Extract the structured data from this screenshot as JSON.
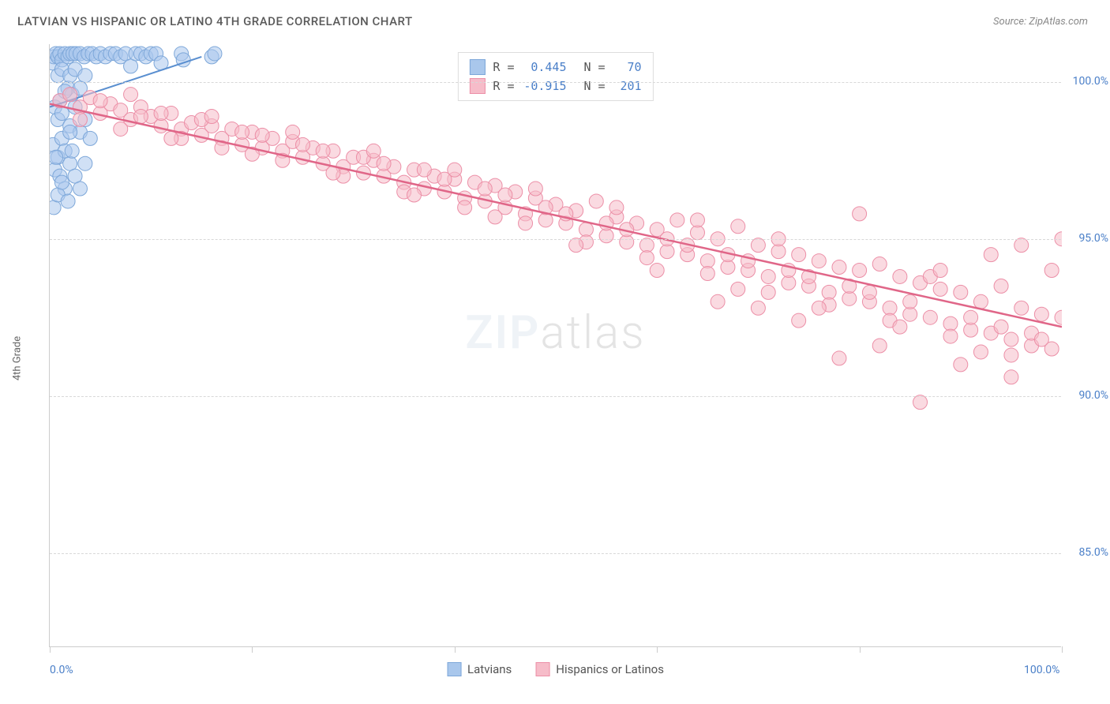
{
  "title": "LATVIAN VS HISPANIC OR LATINO 4TH GRADE CORRELATION CHART",
  "source": "Source: ZipAtlas.com",
  "y_axis_label": "4th Grade",
  "watermark_a": "ZIP",
  "watermark_b": "atlas",
  "chart": {
    "type": "scatter",
    "background_color": "#ffffff",
    "grid_color": "#d8d8d8",
    "axis_color": "#cccccc",
    "tick_label_color": "#4a7fc8",
    "xlim": [
      0,
      100
    ],
    "ylim": [
      82,
      101.2
    ],
    "y_ticks": [
      85,
      90,
      95,
      100
    ],
    "y_tick_labels": [
      "85.0%",
      "90.0%",
      "95.0%",
      "100.0%"
    ],
    "x_ticks": [
      0,
      20,
      40,
      60,
      80,
      100
    ],
    "x_tick_labels_shown": {
      "0": "0.0%",
      "100": "100.0%"
    },
    "series": [
      {
        "name": "Latvians",
        "color_fill": "#a9c7ec",
        "color_stroke": "#7da7d9",
        "fill_opacity": 0.55,
        "marker_radius": 9,
        "trend": {
          "x1": 0,
          "y1": 99.2,
          "x2": 15,
          "y2": 100.8,
          "color": "#5a8fd0",
          "width": 2
        },
        "R": "0.445",
        "N": "70",
        "points": [
          [
            0.3,
            100.6
          ],
          [
            0.4,
            100.8
          ],
          [
            0.6,
            100.9
          ],
          [
            0.8,
            100.8
          ],
          [
            1.0,
            100.9
          ],
          [
            1.2,
            100.7
          ],
          [
            1.5,
            100.9
          ],
          [
            1.8,
            100.8
          ],
          [
            2.0,
            100.9
          ],
          [
            2.3,
            100.9
          ],
          [
            2.6,
            100.9
          ],
          [
            3.0,
            100.9
          ],
          [
            3.4,
            100.8
          ],
          [
            3.8,
            100.9
          ],
          [
            4.2,
            100.9
          ],
          [
            4.6,
            100.8
          ],
          [
            5.0,
            100.9
          ],
          [
            5.5,
            100.8
          ],
          [
            6.0,
            100.9
          ],
          [
            6.5,
            100.9
          ],
          [
            7.0,
            100.8
          ],
          [
            7.5,
            100.9
          ],
          [
            8.0,
            100.5
          ],
          [
            8.5,
            100.9
          ],
          [
            9.0,
            100.9
          ],
          [
            9.5,
            100.8
          ],
          [
            10.0,
            100.9
          ],
          [
            10.5,
            100.9
          ],
          [
            11.0,
            100.6
          ],
          [
            13.0,
            100.9
          ],
          [
            13.2,
            100.7
          ],
          [
            16.0,
            100.8
          ],
          [
            16.3,
            100.9
          ],
          [
            0.8,
            100.2
          ],
          [
            1.2,
            100.4
          ],
          [
            1.8,
            99.8
          ],
          [
            2.0,
            100.2
          ],
          [
            2.2,
            99.6
          ],
          [
            2.5,
            100.4
          ],
          [
            3.0,
            99.8
          ],
          [
            3.5,
            100.2
          ],
          [
            0.5,
            99.2
          ],
          [
            1.0,
            99.4
          ],
          [
            1.5,
            99.7
          ],
          [
            0.8,
            98.8
          ],
          [
            1.2,
            99.0
          ],
          [
            2.0,
            98.6
          ],
          [
            2.5,
            99.2
          ],
          [
            3.0,
            98.4
          ],
          [
            3.5,
            98.8
          ],
          [
            4.0,
            98.2
          ],
          [
            0.3,
            98.0
          ],
          [
            0.8,
            97.6
          ],
          [
            1.2,
            98.2
          ],
          [
            1.5,
            97.8
          ],
          [
            2.0,
            98.4
          ],
          [
            0.5,
            97.2
          ],
          [
            1.0,
            97.0
          ],
          [
            1.5,
            96.6
          ],
          [
            2.0,
            97.4
          ],
          [
            0.4,
            96.0
          ],
          [
            0.8,
            96.4
          ],
          [
            1.2,
            96.8
          ],
          [
            0.6,
            97.6
          ],
          [
            2.5,
            97.0
          ],
          [
            3.0,
            96.6
          ],
          [
            1.8,
            96.2
          ],
          [
            2.2,
            97.8
          ],
          [
            3.5,
            97.4
          ]
        ]
      },
      {
        "name": "Hispanics or Latinos",
        "color_fill": "#f6bcc9",
        "color_stroke": "#ec8fa7",
        "fill_opacity": 0.55,
        "marker_radius": 9,
        "trend": {
          "x1": 0,
          "y1": 99.3,
          "x2": 100,
          "y2": 92.2,
          "color": "#e06688",
          "width": 2.5
        },
        "R": "-0.915",
        "N": "201",
        "points": [
          [
            1,
            99.4
          ],
          [
            2,
            99.6
          ],
          [
            3,
            99.2
          ],
          [
            4,
            99.5
          ],
          [
            5,
            99.0
          ],
          [
            6,
            99.3
          ],
          [
            7,
            99.1
          ],
          [
            8,
            98.8
          ],
          [
            9,
            99.2
          ],
          [
            10,
            98.9
          ],
          [
            11,
            98.6
          ],
          [
            12,
            99.0
          ],
          [
            13,
            98.5
          ],
          [
            14,
            98.7
          ],
          [
            15,
            98.3
          ],
          [
            16,
            98.6
          ],
          [
            17,
            98.2
          ],
          [
            18,
            98.5
          ],
          [
            19,
            98.0
          ],
          [
            20,
            98.4
          ],
          [
            21,
            97.9
          ],
          [
            22,
            98.2
          ],
          [
            23,
            97.8
          ],
          [
            24,
            98.1
          ],
          [
            25,
            97.6
          ],
          [
            26,
            97.9
          ],
          [
            27,
            97.4
          ],
          [
            28,
            97.8
          ],
          [
            29,
            97.3
          ],
          [
            30,
            97.6
          ],
          [
            31,
            97.1
          ],
          [
            32,
            97.5
          ],
          [
            33,
            97.0
          ],
          [
            34,
            97.3
          ],
          [
            35,
            96.8
          ],
          [
            36,
            97.2
          ],
          [
            37,
            96.6
          ],
          [
            38,
            97.0
          ],
          [
            39,
            96.5
          ],
          [
            40,
            96.9
          ],
          [
            41,
            96.3
          ],
          [
            42,
            96.8
          ],
          [
            43,
            96.2
          ],
          [
            44,
            96.7
          ],
          [
            45,
            96.0
          ],
          [
            46,
            96.5
          ],
          [
            47,
            95.8
          ],
          [
            48,
            96.3
          ],
          [
            49,
            95.6
          ],
          [
            50,
            96.1
          ],
          [
            51,
            95.5
          ],
          [
            52,
            95.9
          ],
          [
            53,
            95.3
          ],
          [
            54,
            96.2
          ],
          [
            55,
            95.1
          ],
          [
            56,
            95.7
          ],
          [
            57,
            94.9
          ],
          [
            58,
            95.5
          ],
          [
            59,
            94.8
          ],
          [
            60,
            95.3
          ],
          [
            61,
            94.6
          ],
          [
            62,
            95.6
          ],
          [
            63,
            94.5
          ],
          [
            64,
            95.2
          ],
          [
            65,
            94.3
          ],
          [
            66,
            95.0
          ],
          [
            67,
            94.1
          ],
          [
            68,
            95.4
          ],
          [
            69,
            94.0
          ],
          [
            70,
            94.8
          ],
          [
            71,
            93.8
          ],
          [
            72,
            94.6
          ],
          [
            73,
            93.6
          ],
          [
            74,
            94.5
          ],
          [
            75,
            93.5
          ],
          [
            76,
            94.3
          ],
          [
            77,
            93.3
          ],
          [
            78,
            94.1
          ],
          [
            79,
            93.1
          ],
          [
            80,
            94.0
          ],
          [
            81,
            93.0
          ],
          [
            82,
            94.2
          ],
          [
            83,
            92.8
          ],
          [
            84,
            93.8
          ],
          [
            85,
            92.6
          ],
          [
            86,
            93.6
          ],
          [
            87,
            92.5
          ],
          [
            88,
            93.4
          ],
          [
            89,
            92.3
          ],
          [
            90,
            93.3
          ],
          [
            91,
            92.1
          ],
          [
            92,
            93.0
          ],
          [
            93,
            92.0
          ],
          [
            94,
            93.5
          ],
          [
            95,
            91.8
          ],
          [
            96,
            92.8
          ],
          [
            97,
            91.6
          ],
          [
            98,
            92.6
          ],
          [
            99,
            91.5
          ],
          [
            100,
            92.5
          ],
          [
            3,
            98.8
          ],
          [
            5,
            99.4
          ],
          [
            7,
            98.5
          ],
          [
            9,
            98.9
          ],
          [
            11,
            99.0
          ],
          [
            13,
            98.2
          ],
          [
            15,
            98.8
          ],
          [
            17,
            97.9
          ],
          [
            19,
            98.4
          ],
          [
            21,
            98.3
          ],
          [
            23,
            97.5
          ],
          [
            25,
            98.0
          ],
          [
            27,
            97.8
          ],
          [
            29,
            97.0
          ],
          [
            31,
            97.6
          ],
          [
            33,
            97.4
          ],
          [
            35,
            96.5
          ],
          [
            37,
            97.2
          ],
          [
            39,
            96.9
          ],
          [
            41,
            96.0
          ],
          [
            43,
            96.6
          ],
          [
            45,
            96.4
          ],
          [
            47,
            95.5
          ],
          [
            49,
            96.0
          ],
          [
            51,
            95.8
          ],
          [
            53,
            94.9
          ],
          [
            55,
            95.5
          ],
          [
            57,
            95.3
          ],
          [
            59,
            94.4
          ],
          [
            61,
            95.0
          ],
          [
            63,
            94.8
          ],
          [
            65,
            93.9
          ],
          [
            67,
            94.5
          ],
          [
            69,
            94.3
          ],
          [
            71,
            93.3
          ],
          [
            73,
            94.0
          ],
          [
            75,
            93.8
          ],
          [
            77,
            92.9
          ],
          [
            79,
            93.5
          ],
          [
            81,
            93.3
          ],
          [
            83,
            92.4
          ],
          [
            85,
            93.0
          ],
          [
            87,
            93.8
          ],
          [
            89,
            91.9
          ],
          [
            91,
            92.5
          ],
          [
            93,
            94.5
          ],
          [
            95,
            91.3
          ],
          [
            97,
            92.0
          ],
          [
            99,
            94.0
          ],
          [
            8,
            99.6
          ],
          [
            12,
            98.2
          ],
          [
            16,
            98.9
          ],
          [
            20,
            97.7
          ],
          [
            24,
            98.4
          ],
          [
            28,
            97.1
          ],
          [
            32,
            97.8
          ],
          [
            36,
            96.4
          ],
          [
            40,
            97.2
          ],
          [
            44,
            95.7
          ],
          [
            48,
            96.6
          ],
          [
            52,
            94.8
          ],
          [
            56,
            96.0
          ],
          [
            60,
            94.0
          ],
          [
            64,
            95.6
          ],
          [
            68,
            93.4
          ],
          [
            72,
            95.0
          ],
          [
            76,
            92.8
          ],
          [
            80,
            95.8
          ],
          [
            84,
            92.2
          ],
          [
            88,
            94.0
          ],
          [
            92,
            91.4
          ],
          [
            96,
            94.8
          ],
          [
            100,
            95.0
          ],
          [
            86,
            89.8
          ],
          [
            95,
            90.6
          ],
          [
            78,
            91.2
          ],
          [
            82,
            91.6
          ],
          [
            90,
            91.0
          ],
          [
            94,
            92.2
          ],
          [
            98,
            91.8
          ],
          [
            70,
            92.8
          ],
          [
            74,
            92.4
          ],
          [
            66,
            93.0
          ]
        ]
      }
    ]
  },
  "legend_top": [
    {
      "swatch_fill": "#a9c7ec",
      "swatch_stroke": "#7da7d9",
      "r_label": "R =",
      "r_val": "0.445",
      "n_label": "N =",
      "n_val": "70"
    },
    {
      "swatch_fill": "#f6bcc9",
      "swatch_stroke": "#ec8fa7",
      "r_label": "R =",
      "r_val": "-0.915",
      "n_label": "N =",
      "n_val": "201"
    }
  ],
  "legend_bottom": [
    {
      "swatch_fill": "#a9c7ec",
      "swatch_stroke": "#7da7d9",
      "label": "Latvians"
    },
    {
      "swatch_fill": "#f6bcc9",
      "swatch_stroke": "#ec8fa7",
      "label": "Hispanics or Latinos"
    }
  ]
}
